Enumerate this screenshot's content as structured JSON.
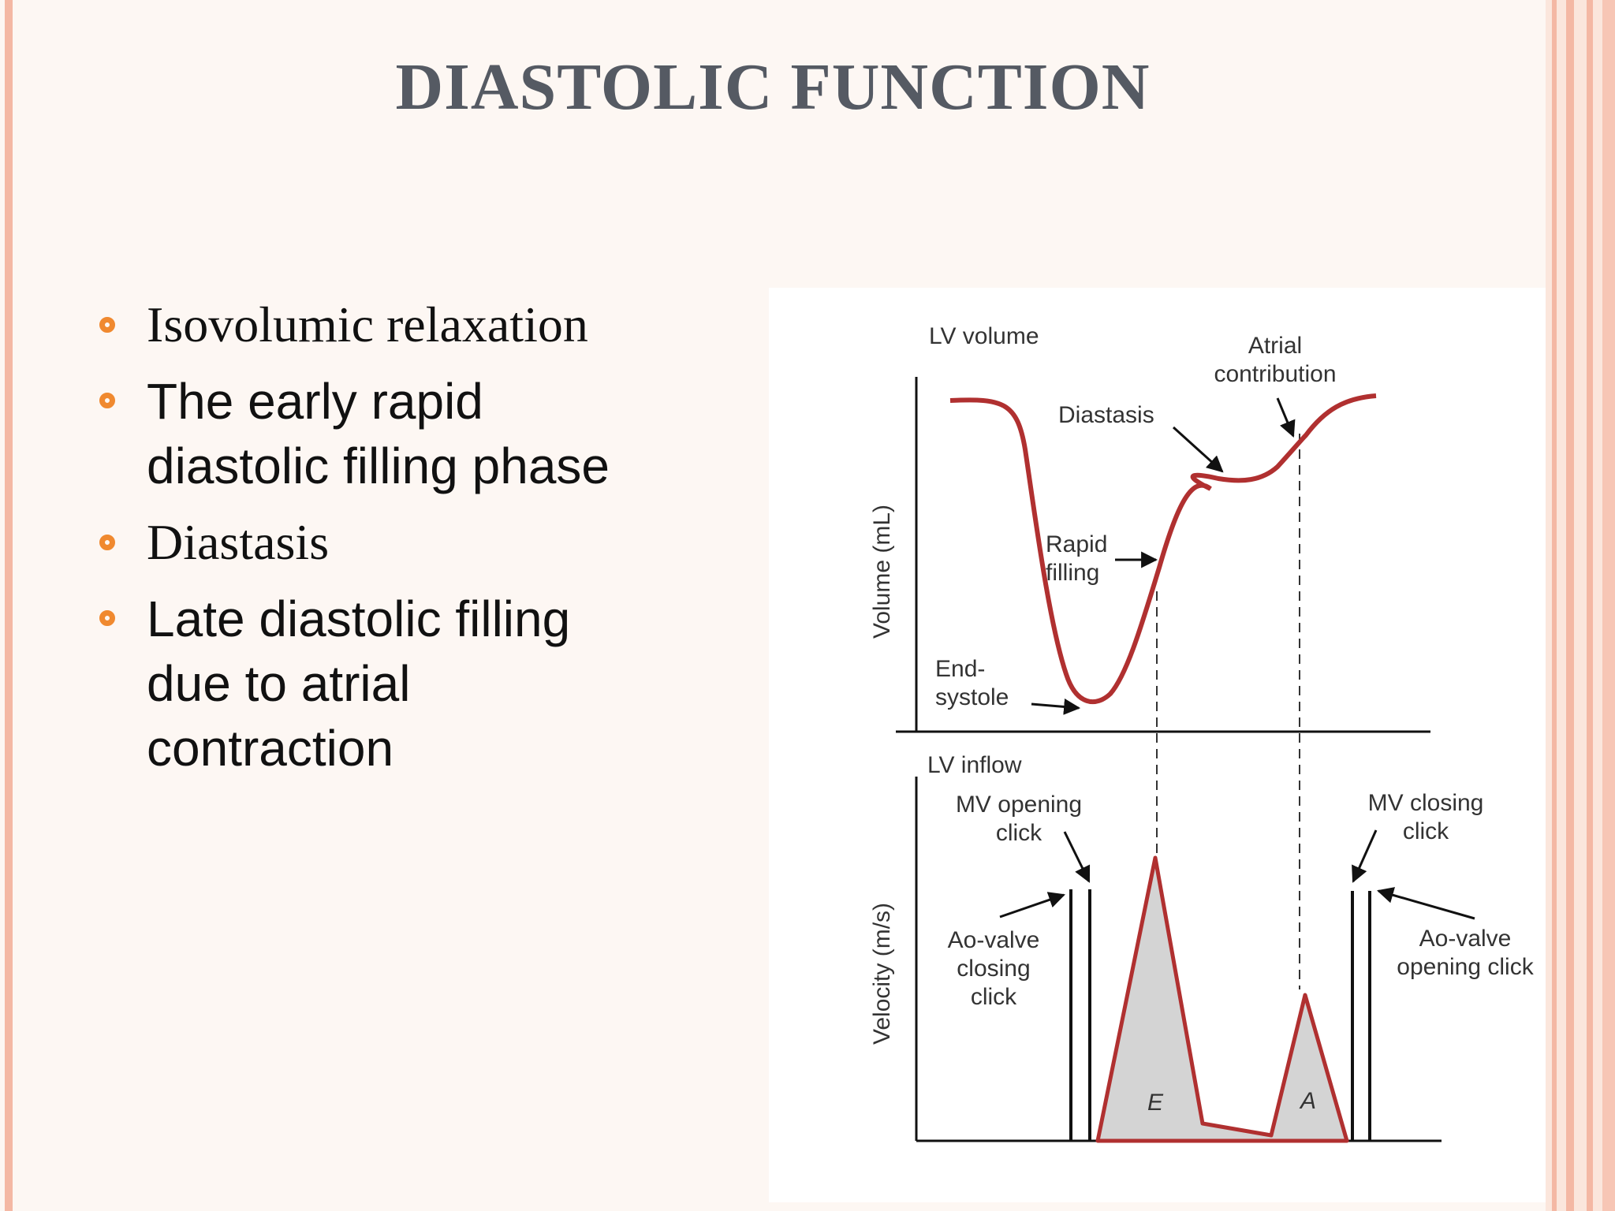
{
  "slide": {
    "title": "DIASTOLIC FUNCTION",
    "bullets": [
      "Isovolumic relaxation",
      "The early rapid diastolic filling phase",
      "Diastasis",
      "Late diastolic filling due to atrial contraction"
    ],
    "accent_color": "#f0892f",
    "frame_color": "#f4b8a4"
  },
  "diagram": {
    "volume_panel": {
      "heading": "LV volume",
      "y_axis_label": "Volume (mL)",
      "labels": {
        "atrial": [
          "Atrial",
          "contribution"
        ],
        "diastasis": "Diastasis",
        "rapid": [
          "Rapid",
          "filling"
        ],
        "endsys": [
          "End-",
          "systole"
        ]
      }
    },
    "inflow_panel": {
      "heading": "LV inflow",
      "y_axis_label": "Velocity (m/s)",
      "labels": {
        "mv_open": [
          "MV opening",
          "click"
        ],
        "mv_close": [
          "MV closing",
          "click"
        ],
        "ao_close": [
          "Ao-valve",
          "closing",
          "click"
        ],
        "ao_open": [
          "Ao-valve",
          "opening click"
        ]
      },
      "waves": {
        "e": "E",
        "a": "A"
      }
    },
    "curve_color": "#b03030",
    "fill_color": "#d4d4d4"
  }
}
